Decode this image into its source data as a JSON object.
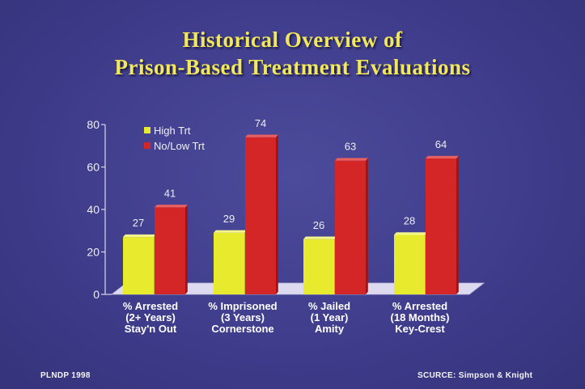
{
  "title_lines": [
    "Historical Overview of",
    "Prison-Based Treatment Evaluations"
  ],
  "footer": {
    "left": "PLNDP 1998",
    "right": "SCURCE: Simpson & Knight"
  },
  "colors": {
    "high": "#e8ea2e",
    "low": "#d42626",
    "accent": "#f2e85a"
  },
  "chart_data": {
    "type": "bar",
    "title": "Historical Overview of Prison-Based Treatment Evaluations",
    "categories": [
      [
        "% Arrested",
        "(2+ Years)",
        "Stay'n Out"
      ],
      [
        "% Imprisoned",
        "(3 Years)",
        "Cornerstone"
      ],
      [
        "% Jailed",
        "(1 Year)",
        "Amity"
      ],
      [
        "% Arrested",
        "(18 Months)",
        "Key-Crest"
      ]
    ],
    "series": [
      {
        "name": "High Trt",
        "values": [
          27,
          29,
          26,
          28
        ]
      },
      {
        "name": "No/Low Trt",
        "values": [
          41,
          74,
          63,
          64
        ]
      }
    ],
    "yticks": [
      0,
      20,
      40,
      60,
      80
    ],
    "ylim": [
      0,
      80
    ],
    "legend_position": "top-left",
    "grid": false
  }
}
